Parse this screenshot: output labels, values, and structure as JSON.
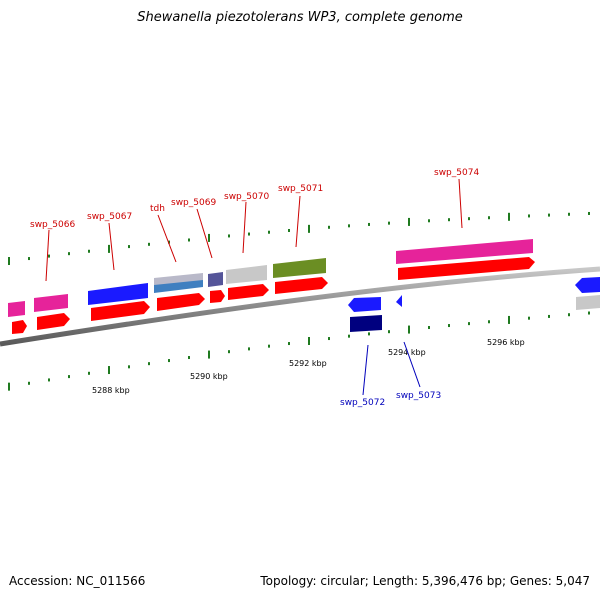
{
  "title": "Shewanella piezotolerans WP3, complete genome",
  "footer": {
    "accession": "Accession: NC_011566",
    "summary": "Topology: circular; Length: 5,396,476 bp; Genes: 5,047"
  },
  "colors": {
    "backbone": "#8a8a8a",
    "ticks": "#1f7a1f",
    "forward_label": "#cc0000",
    "reverse_label": "#0000bb"
  },
  "ticks": [
    {
      "label": "5288 kbp"
    },
    {
      "label": "5290 kbp"
    },
    {
      "label": "5292 kbp"
    },
    {
      "label": "5294 kbp"
    },
    {
      "label": "5296 kbp"
    }
  ],
  "labels": {
    "forward": [
      "swp_5066",
      "swp_5067",
      "tdh",
      "swp_5069",
      "swp_5070",
      "swp_5071",
      "swp_5074"
    ],
    "reverse": [
      "swp_5072",
      "swp_5073"
    ]
  }
}
